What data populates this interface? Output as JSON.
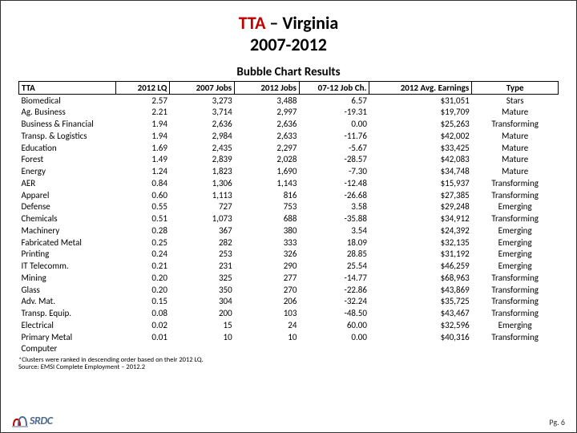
{
  "title": {
    "prefix_red": "TTA",
    "line1_rest": " – Virginia",
    "line2": "2007-2012"
  },
  "subtitle": "Bubble Chart Results",
  "columns": [
    "TTA",
    "2012 LQ",
    "2007 Jobs",
    "2012 Jobs",
    "07-12 Job Ch.",
    "2012 Avg. Earnings",
    "Type"
  ],
  "rows": [
    {
      "tta": "Biomedical",
      "lq": "2.57",
      "j07": "3,273",
      "j12": "3,488",
      "ch": "6.57",
      "earn": "$31,051",
      "type": "Stars"
    },
    {
      "tta": "Ag. Business",
      "lq": "2.21",
      "j07": "3,714",
      "j12": "2,997",
      "ch": "-19.31",
      "earn": "$19,709",
      "type": "Mature"
    },
    {
      "tta": "Business & Financial",
      "lq": "1.94",
      "j07": "2,636",
      "j12": "2,636",
      "ch": "0.00",
      "earn": "$25,263",
      "type": "Transforming"
    },
    {
      "tta": "Transp. & Logistics",
      "lq": "1.94",
      "j07": "2,984",
      "j12": "2,633",
      "ch": "-11.76",
      "earn": "$42,002",
      "type": "Mature"
    },
    {
      "tta": "Education",
      "lq": "1.69",
      "j07": "2,435",
      "j12": "2,297",
      "ch": "-5.67",
      "earn": "$33,425",
      "type": "Mature"
    },
    {
      "tta": "Forest",
      "lq": "1.49",
      "j07": "2,839",
      "j12": "2,028",
      "ch": "-28.57",
      "earn": "$42,083",
      "type": "Mature"
    },
    {
      "tta": "Energy",
      "lq": "1.24",
      "j07": "1,823",
      "j12": "1,690",
      "ch": "-7.30",
      "earn": "$34,748",
      "type": "Mature"
    },
    {
      "tta": "AER",
      "lq": "0.84",
      "j07": "1,306",
      "j12": "1,143",
      "ch": "-12.48",
      "earn": "$15,937",
      "type": "Transforming"
    },
    {
      "tta": "Apparel",
      "lq": "0.60",
      "j07": "1,113",
      "j12": "816",
      "ch": "-26.68",
      "earn": "$27,385",
      "type": "Transforming"
    },
    {
      "tta": "Defense",
      "lq": "0.55",
      "j07": "727",
      "j12": "753",
      "ch": "3.58",
      "earn": "$29,248",
      "type": "Emerging"
    },
    {
      "tta": "Chemicals",
      "lq": "0.51",
      "j07": "1,073",
      "j12": "688",
      "ch": "-35.88",
      "earn": "$34,912",
      "type": "Transforming"
    },
    {
      "tta": "Machinery",
      "lq": "0.28",
      "j07": "367",
      "j12": "380",
      "ch": "3.54",
      "earn": "$24,392",
      "type": "Emerging"
    },
    {
      "tta": "Fabricated Metal",
      "lq": "0.25",
      "j07": "282",
      "j12": "333",
      "ch": "18.09",
      "earn": "$32,135",
      "type": "Emerging"
    },
    {
      "tta": "Printing",
      "lq": "0.24",
      "j07": "253",
      "j12": "326",
      "ch": "28.85",
      "earn": "$31,192",
      "type": "Emerging"
    },
    {
      "tta": "IT Telecomm.",
      "lq": "0.21",
      "j07": "231",
      "j12": "290",
      "ch": "25.54",
      "earn": "$46,259",
      "type": "Emerging"
    },
    {
      "tta": "Mining",
      "lq": "0.20",
      "j07": "325",
      "j12": "277",
      "ch": "-14.77",
      "earn": "$68,963",
      "type": "Transforming"
    },
    {
      "tta": "Glass",
      "lq": "0.20",
      "j07": "350",
      "j12": "270",
      "ch": "-22.86",
      "earn": "$43,869",
      "type": "Transforming"
    },
    {
      "tta": "Adv. Mat.",
      "lq": "0.15",
      "j07": "304",
      "j12": "206",
      "ch": "-32.24",
      "earn": "$35,725",
      "type": "Transforming"
    },
    {
      "tta": "Transp. Equip.",
      "lq": "0.08",
      "j07": "200",
      "j12": "103",
      "ch": "-48.50",
      "earn": "$43,467",
      "type": "Transforming"
    },
    {
      "tta": "Electrical",
      "lq": "0.02",
      "j07": "15",
      "j12": "24",
      "ch": "60.00",
      "earn": "$32,596",
      "type": "Emerging"
    },
    {
      "tta": "Primary Metal",
      "lq": "0.01",
      "j07": "10",
      "j12": "10",
      "ch": "0.00",
      "earn": "$40,316",
      "type": "Transforming"
    },
    {
      "tta": "Computer",
      "lq": "",
      "j07": "",
      "j12": "",
      "ch": "",
      "earn": "",
      "type": ""
    }
  ],
  "footnotes": [
    "*Clusters were ranked in descending order based on their 2012 LQ.",
    "Source: EMSI Complete Employment – 2012.2"
  ],
  "logo_text": "SRDC",
  "page_label": "Pg. 6"
}
